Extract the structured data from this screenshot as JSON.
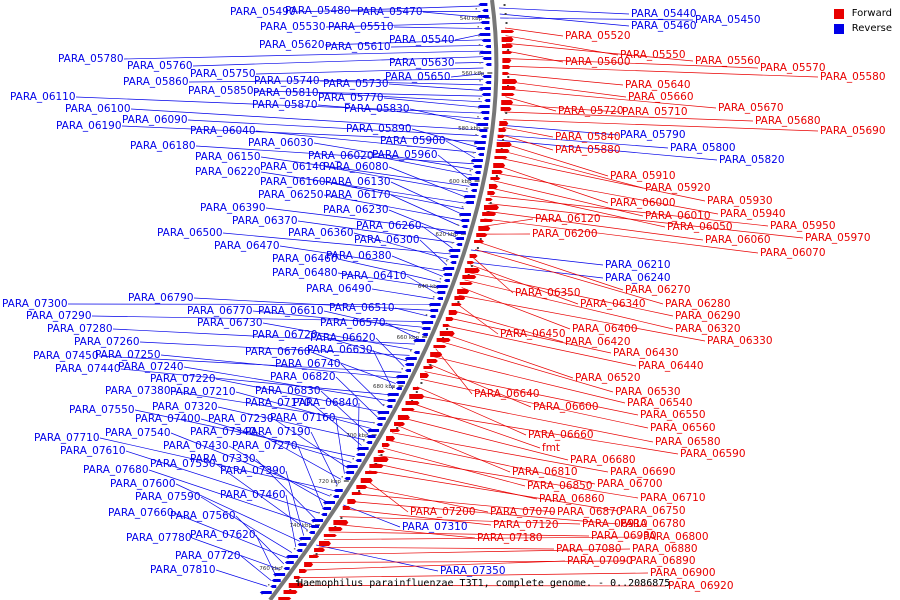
{
  "title": "Haemophilus parainfluenzae T3T1, complete genome. - 0..2086875",
  "legend": [
    {
      "label": "Forward",
      "color": "#e80000"
    },
    {
      "label": "Reverse",
      "color": "#0000e8"
    }
  ],
  "colors": {
    "forward": "#e80000",
    "reverse": "#0000e8",
    "backbone": "#777777"
  },
  "ticks": [
    "540 kbp",
    "560 kbp",
    "580 kbp",
    "600 kbp",
    "620 kbp",
    "640 kbp",
    "660 kbp",
    "680 kbp",
    "700 kbp",
    "720 kbp",
    "740 kbp",
    "760 kbp"
  ],
  "reverse_labels": [
    "PARA_05490",
    "PARA_05480",
    "PARA_05470",
    "PARA_05530",
    "PARA_05510",
    "PARA_05540",
    "PARA_05620",
    "PARA_05610",
    "PARA_05780",
    "PARA_05760",
    "PARA_05630",
    "PARA_05750",
    "PARA_05650",
    "PARA_05860",
    "PARA_05740",
    "PARA_05730",
    "PARA_05850",
    "PARA_05810",
    "PARA_05770",
    "PARA_06110",
    "PARA_05870",
    "PARA_05830",
    "PARA_06100",
    "PARA_06090",
    "PARA_06190",
    "PARA_05890",
    "PARA_06040",
    "PARA_05900",
    "PARA_06180",
    "PARA_06030",
    "PARA_06020",
    "PARA_05960",
    "PARA_06150",
    "PARA_06140",
    "PARA_06080",
    "PARA_06220",
    "PARA_06160",
    "PARA_06130",
    "PARA_06250",
    "PARA_06170",
    "PARA_06390",
    "PARA_06230",
    "PARA_06370",
    "PARA_06260",
    "PARA_06500",
    "PARA_06360",
    "PARA_06300",
    "PARA_06470",
    "PARA_06380",
    "PARA_06460",
    "PARA_06480",
    "PARA_06410",
    "PARA_06490",
    "PARA_07300",
    "PARA_06790",
    "PARA_06510",
    "PARA_07290",
    "PARA_06770",
    "PARA_06610",
    "PARA_06570",
    "PARA_07280",
    "PARA_06730",
    "PARA_07260",
    "PARA_06720",
    "PARA_06620",
    "PARA_07450",
    "PARA_07250",
    "PARA_06760",
    "PARA_06630",
    "PARA_07440",
    "PARA_07240",
    "PARA_06740",
    "PARA_07220",
    "PARA_06820",
    "PARA_07380",
    "PARA_07210",
    "PARA_06830",
    "PARA_07320",
    "PARA_07170",
    "PARA_06840",
    "PARA_07550",
    "PARA_07400",
    "PARA_07230",
    "PARA_07160",
    "PARA_07340",
    "PARA_07190",
    "PARA_07710",
    "PARA_07540",
    "PARA_07430",
    "PARA_07270",
    "PARA_07610",
    "PARA_07330",
    "PARA_07680",
    "PARA_07530",
    "PARA_07390",
    "PARA_07600",
    "PARA_07460",
    "PARA_07590",
    "PARA_07660",
    "PARA_07560",
    "PARA_07780",
    "PARA_07620",
    "PARA_07720",
    "PARA_07810",
    "PARA_05440",
    "PARA_05460",
    "PARA_05450",
    "PARA_05790",
    "PARA_05800",
    "PARA_05820",
    "PARA_06210",
    "PARA_06240",
    "PARA_07310",
    "PARA_07350"
  ],
  "forward_labels": [
    "PARA_05520",
    "PARA_05550",
    "PARA_05560",
    "PARA_05600",
    "PARA_05570",
    "PARA_05580",
    "PARA_05640",
    "PARA_05660",
    "PARA_05670",
    "PARA_05720",
    "PARA_05710",
    "PARA_05680",
    "PARA_05690",
    "PARA_05840",
    "PARA_05880",
    "PARA_05910",
    "PARA_05920",
    "PARA_05930",
    "PARA_06000",
    "PARA_05940",
    "PARA_06010",
    "PARA_06050",
    "PARA_05950",
    "PARA_05970",
    "PARA_06060",
    "PARA_06070",
    "PARA_06120",
    "PARA_06200",
    "PARA_06270",
    "PARA_06280",
    "PARA_06350",
    "PARA_06340",
    "PARA_06290",
    "PARA_06320",
    "PARA_06400",
    "PARA_06330",
    "PARA_06450",
    "PARA_06420",
    "PARA_06430",
    "PARA_06440",
    "PARA_06520",
    "PARA_06530",
    "PARA_06640",
    "PARA_06540",
    "PARA_06600",
    "PARA_06550",
    "PARA_06560",
    "PARA_06660",
    "PARA_06580",
    "fmt",
    "PARA_06590",
    "PARA_06680",
    "PARA_06810",
    "PARA_06690",
    "PARA_06700",
    "PARA_06850",
    "PARA_06710",
    "PARA_06860",
    "PARA_06750",
    "PARA_07200",
    "PARA_07070",
    "PARA_06870",
    "PARA_06780",
    "PARA_07120",
    "PARA_06910",
    "PARA_07180",
    "PARA_06930",
    "PARA_06800",
    "PARA_07080",
    "PARA_06880",
    "PARA_06890",
    "PARA_07090",
    "PARA_06900",
    "PARA_06920"
  ]
}
